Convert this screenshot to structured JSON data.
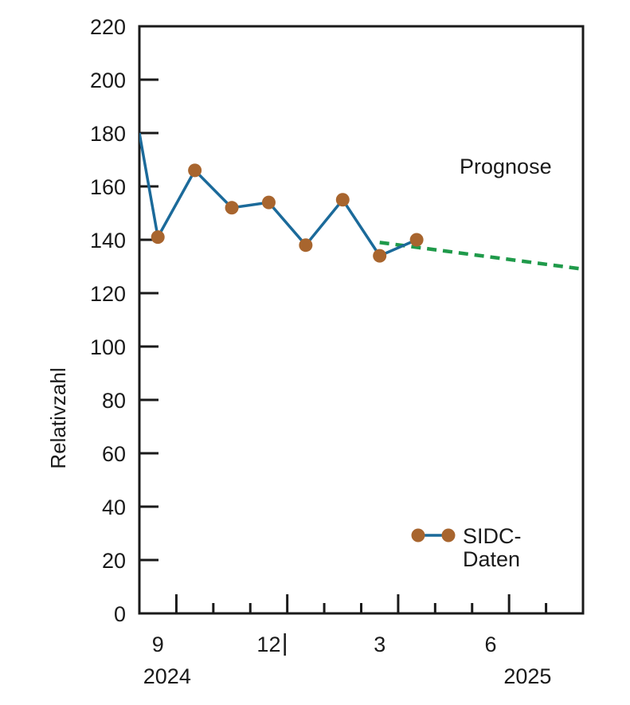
{
  "chart_data": {
    "type": "line",
    "ylabel": "Relativzahl",
    "ylim": [
      0,
      220
    ],
    "yticks": [
      0,
      20,
      40,
      60,
      80,
      100,
      120,
      140,
      160,
      180,
      200,
      220
    ],
    "ytick_labels": [
      "0",
      "20",
      "40",
      "60",
      "80",
      "100",
      "120",
      "140",
      "160",
      "180",
      "200",
      "220"
    ],
    "xlim": [
      0,
      12
    ],
    "xticks": [
      1,
      2,
      3,
      4,
      5,
      6,
      7,
      8,
      9,
      10,
      11
    ],
    "xtick_labels": [
      {
        "x": 0.5,
        "label": "9"
      },
      {
        "x": 3.5,
        "label": "12"
      },
      {
        "x": 6.5,
        "label": "3"
      },
      {
        "x": 9.5,
        "label": "6"
      }
    ],
    "year_labels": [
      {
        "x": 0.75,
        "label": "2024"
      },
      {
        "x": 10.5,
        "label": "2025"
      }
    ],
    "year_separator_x": 4,
    "series": [
      {
        "name": "SIDC-Daten",
        "color": "#1b6a9a",
        "marker_color": "#a8652e",
        "line_start": {
          "x": 0,
          "y": 180
        },
        "x": [
          0.5,
          1.5,
          2.5,
          3.5,
          4.5,
          5.5,
          6.5,
          7.5
        ],
        "values": [
          141,
          166,
          152,
          154,
          138,
          155,
          134,
          140
        ]
      },
      {
        "name": "Prognose",
        "color": "#1f9a4a",
        "dashed": true,
        "x": [
          6.5,
          12
        ],
        "values": [
          139,
          129
        ]
      }
    ],
    "annotations": [
      {
        "text": "Prognose"
      }
    ],
    "legend": {
      "line1": "SIDC-",
      "line2": "Daten",
      "placement": "bottom-right"
    }
  }
}
